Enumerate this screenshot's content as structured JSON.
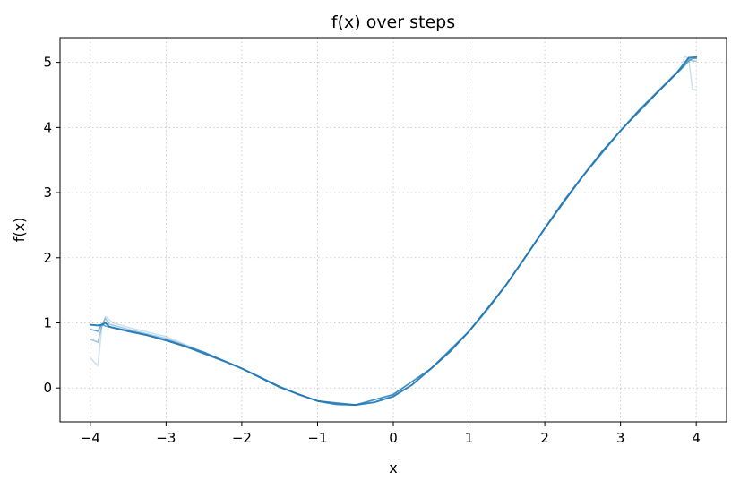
{
  "chart_data": {
    "type": "line",
    "title": "f(x) over steps",
    "xlabel": "x",
    "ylabel": "f(x)",
    "xlim": [
      -4.4,
      4.4
    ],
    "ylim": [
      -0.52,
      5.38
    ],
    "grid": true,
    "legend": "none",
    "x_ticks": [
      -4,
      -3,
      -2,
      -1,
      0,
      1,
      2,
      3,
      4
    ],
    "x_tick_labels": [
      "−4",
      "−3",
      "−2",
      "−1",
      "0",
      "1",
      "2",
      "3",
      "4"
    ],
    "y_ticks": [
      0,
      1,
      2,
      3,
      4,
      5
    ],
    "y_tick_labels": [
      "0",
      "1",
      "2",
      "3",
      "4",
      "5"
    ],
    "series": [
      {
        "color": "#1f77b4",
        "opacity": 0.22,
        "x": [
          -4.0,
          -3.9,
          -3.85,
          -3.8,
          -3.7,
          -3.5,
          -3.0,
          -2.5,
          -2.0,
          -1.5,
          -1.0,
          -0.5,
          0.0,
          0.5,
          1.0,
          1.5,
          2.0,
          2.5,
          3.0,
          3.5,
          3.8,
          3.85,
          3.9,
          3.95,
          4.0
        ],
        "y": [
          0.46,
          0.34,
          0.92,
          1.1,
          1.0,
          0.93,
          0.79,
          0.55,
          0.3,
          0.01,
          -0.2,
          -0.26,
          -0.1,
          0.3,
          0.87,
          1.6,
          2.45,
          3.25,
          3.95,
          4.55,
          4.9,
          5.1,
          5.05,
          4.58,
          4.58
        ]
      },
      {
        "color": "#1f77b4",
        "opacity": 0.4,
        "x": [
          -4.0,
          -3.9,
          -3.85,
          -3.8,
          -3.75,
          -3.5,
          -3.0,
          -2.5,
          -2.0,
          -1.5,
          -1.0,
          -0.5,
          0.0,
          0.5,
          1.0,
          1.5,
          2.0,
          2.5,
          3.0,
          3.5,
          3.85,
          3.9,
          3.95,
          4.0
        ],
        "y": [
          0.75,
          0.7,
          0.95,
          1.07,
          0.98,
          0.9,
          0.76,
          0.55,
          0.3,
          0.01,
          -0.2,
          -0.26,
          -0.1,
          0.3,
          0.87,
          1.6,
          2.45,
          3.25,
          3.95,
          4.55,
          4.95,
          5.06,
          5.02,
          5.02
        ]
      },
      {
        "color": "#1f77b4",
        "opacity": 0.65,
        "x": [
          -4.0,
          -3.9,
          -3.85,
          -3.8,
          -3.5,
          -3.0,
          -2.5,
          -2.0,
          -1.5,
          -1.0,
          -0.5,
          0.0,
          0.5,
          1.0,
          1.5,
          2.0,
          2.5,
          3.0,
          3.5,
          3.9,
          3.95,
          4.0
        ],
        "y": [
          0.9,
          0.87,
          0.98,
          0.95,
          0.88,
          0.74,
          0.55,
          0.3,
          0.01,
          -0.2,
          -0.26,
          -0.1,
          0.3,
          0.87,
          1.6,
          2.45,
          3.25,
          3.95,
          4.55,
          5.02,
          5.06,
          5.06
        ]
      },
      {
        "color": "#1f77b4",
        "opacity": 0.9,
        "x": [
          -4.0,
          -3.9,
          -3.85,
          -3.8,
          -3.75,
          -3.5,
          -3.25,
          -3.0,
          -2.75,
          -2.5,
          -2.25,
          -2.0,
          -1.75,
          -1.5,
          -1.25,
          -1.0,
          -0.75,
          -0.5,
          -0.25,
          0.0,
          0.25,
          0.5,
          0.75,
          1.0,
          1.25,
          1.5,
          1.75,
          2.0,
          2.25,
          2.5,
          2.75,
          3.0,
          3.25,
          3.5,
          3.75,
          3.9,
          4.0
        ],
        "y": [
          0.97,
          0.96,
          0.97,
          1.0,
          0.94,
          0.87,
          0.81,
          0.73,
          0.64,
          0.53,
          0.42,
          0.3,
          0.16,
          0.02,
          -0.1,
          -0.2,
          -0.25,
          -0.26,
          -0.22,
          -0.13,
          0.05,
          0.3,
          0.56,
          0.87,
          1.22,
          1.6,
          2.02,
          2.45,
          2.87,
          3.25,
          3.62,
          3.95,
          4.27,
          4.56,
          4.85,
          5.07,
          5.08
        ]
      }
    ]
  }
}
